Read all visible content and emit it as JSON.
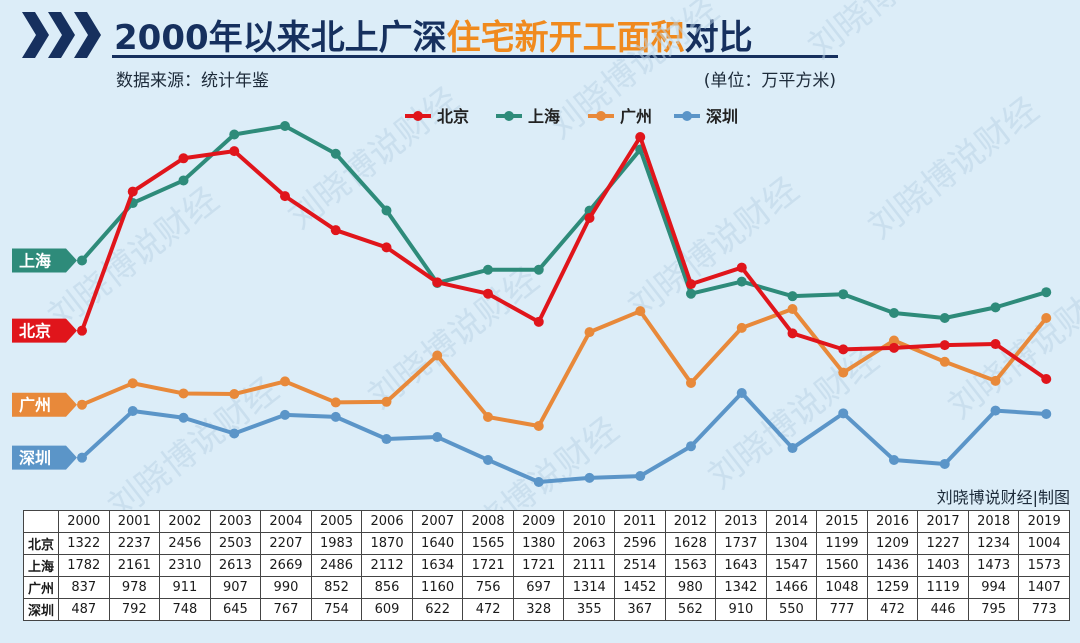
{
  "header": {
    "title_main": "2000年以来北上广深",
    "title_highlight": "住宅新开工面积",
    "title_end": "对比",
    "source": "数据来源：统计年鉴",
    "unit": "(单位：万平方米)",
    "credit": "刘晓博说财经|制图",
    "watermark": "刘晓博说财经"
  },
  "colors": {
    "北京": "#e0151b",
    "上海": "#2e8b7a",
    "广州": "#e8893a",
    "深圳": "#5b95c8",
    "title": "#16305e",
    "highlight": "#f08a1e"
  },
  "chart_data": {
    "type": "line",
    "x": [
      "2000",
      "2001",
      "2002",
      "2003",
      "2004",
      "2005",
      "2006",
      "2007",
      "2008",
      "2009",
      "2010",
      "2011",
      "2012",
      "2013",
      "2014",
      "2015",
      "2016",
      "2017",
      "2018",
      "2019"
    ],
    "series": [
      {
        "name": "北京",
        "values": [
          1322,
          2237,
          2456,
          2503,
          2207,
          1983,
          1870,
          1640,
          1565,
          1380,
          2063,
          2596,
          1628,
          1737,
          1304,
          1199,
          1209,
          1227,
          1234,
          1004
        ]
      },
      {
        "name": "上海",
        "values": [
          1782,
          2161,
          2310,
          2613,
          2669,
          2486,
          2112,
          1634,
          1721,
          1721,
          2111,
          2514,
          1563,
          1643,
          1547,
          1560,
          1436,
          1403,
          1473,
          1573
        ]
      },
      {
        "name": "广州",
        "values": [
          837,
          978,
          911,
          907,
          990,
          852,
          856,
          1160,
          756,
          697,
          1314,
          1452,
          980,
          1342,
          1466,
          1048,
          1259,
          1119,
          994,
          1407
        ]
      },
      {
        "name": "深圳",
        "values": [
          487,
          792,
          748,
          645,
          767,
          754,
          609,
          622,
          472,
          328,
          355,
          367,
          562,
          910,
          550,
          777,
          472,
          446,
          795,
          773
        ]
      }
    ],
    "legend": [
      "北京",
      "上海",
      "广州",
      "深圳"
    ],
    "legend_position": "top-center",
    "grid": false
  }
}
